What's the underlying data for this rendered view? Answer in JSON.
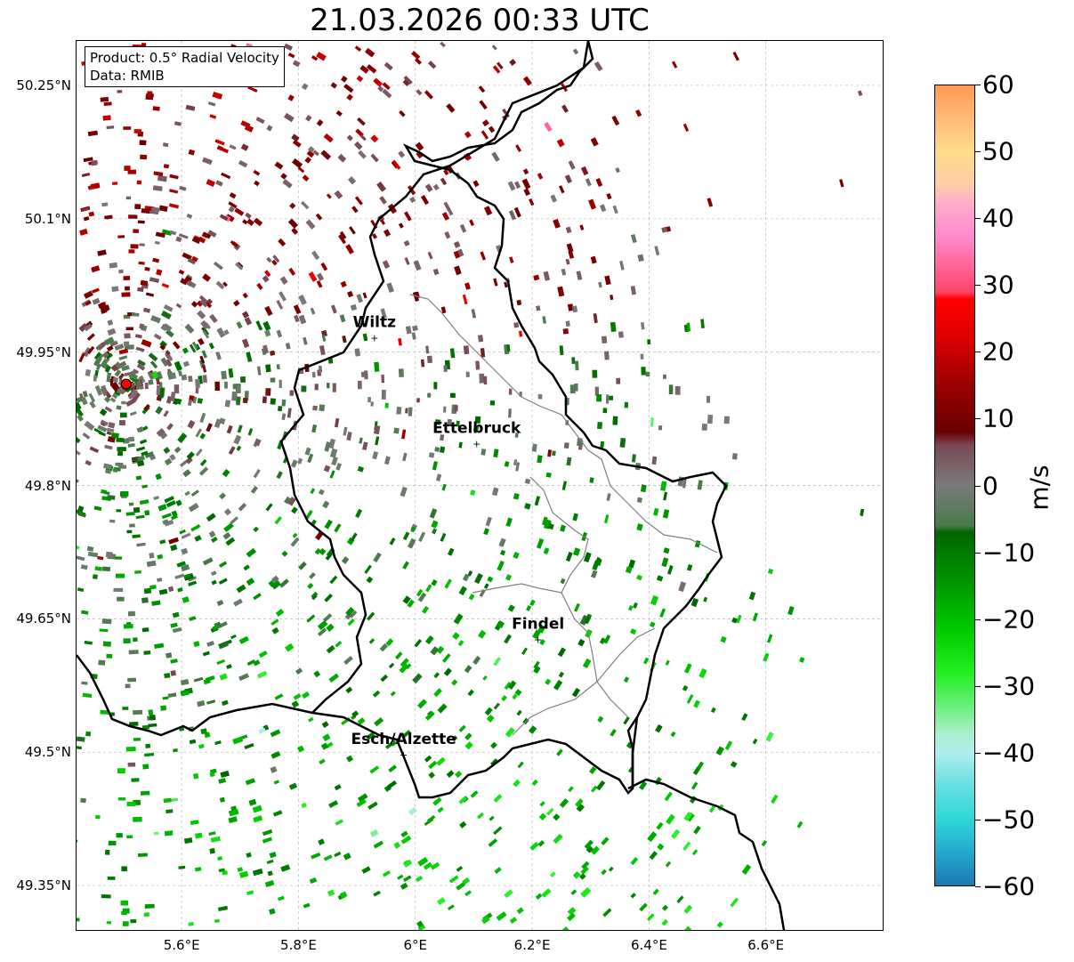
{
  "title": "21.03.2026 00:33 UTC",
  "info": {
    "product": "Product: 0.5° Radial Velocity",
    "data": "Data: RMIB"
  },
  "map": {
    "lon_range": [
      5.42,
      6.8
    ],
    "lat_range": [
      49.3,
      50.3
    ],
    "lat_ticks": [
      {
        "value": 50.25,
        "label": "50.25°N"
      },
      {
        "value": 50.1,
        "label": "50.1°N"
      },
      {
        "value": 49.95,
        "label": "49.95°N"
      },
      {
        "value": 49.8,
        "label": "49.8°N"
      },
      {
        "value": 49.65,
        "label": "49.65°N"
      },
      {
        "value": 49.5,
        "label": "49.5°N"
      },
      {
        "value": 49.35,
        "label": "49.35°N"
      }
    ],
    "lon_ticks": [
      {
        "value": 5.6,
        "label": "5.6°E"
      },
      {
        "value": 5.8,
        "label": "5.8°E"
      },
      {
        "value": 6.0,
        "label": "6°E"
      },
      {
        "value": 6.2,
        "label": "6.2°E"
      },
      {
        "value": 6.4,
        "label": "6.4°E"
      },
      {
        "value": 6.6,
        "label": "6.6°E"
      }
    ],
    "radar_site": {
      "lon": 5.505,
      "lat": 49.914,
      "color": "#ff0000"
    },
    "cities": [
      {
        "name": "Wiltz",
        "lon": 5.93,
        "lat": 49.966
      },
      {
        "name": "Ettelbruck",
        "lon": 6.105,
        "lat": 49.847
      },
      {
        "name": "Findel",
        "lon": 6.21,
        "lat": 49.627
      },
      {
        "name": "Esch/Alzette",
        "lon": 5.98,
        "lat": 49.497
      }
    ]
  },
  "colorbar": {
    "unit": "m/s",
    "min": -60,
    "max": 60,
    "ticks": [
      {
        "value": 60,
        "label": "60"
      },
      {
        "value": 50,
        "label": "50"
      },
      {
        "value": 40,
        "label": "40"
      },
      {
        "value": 30,
        "label": "30"
      },
      {
        "value": 20,
        "label": "20"
      },
      {
        "value": 10,
        "label": "10"
      },
      {
        "value": 0,
        "label": "0"
      },
      {
        "value": -10,
        "label": "−10"
      },
      {
        "value": -20,
        "label": "−20"
      },
      {
        "value": -30,
        "label": "−30"
      },
      {
        "value": -40,
        "label": "−40"
      },
      {
        "value": -50,
        "label": "−50"
      },
      {
        "value": -60,
        "label": "−60"
      }
    ],
    "stops": [
      {
        "value": -60,
        "color": "#1f77b4"
      },
      {
        "value": -55,
        "color": "#22aacc"
      },
      {
        "value": -50,
        "color": "#2ed8d8"
      },
      {
        "value": -45,
        "color": "#66e0e0"
      },
      {
        "value": -40,
        "color": "#b0eef0"
      },
      {
        "value": -37,
        "color": "#a8f0c8"
      },
      {
        "value": -33,
        "color": "#66f07a"
      },
      {
        "value": -28,
        "color": "#22ee22"
      },
      {
        "value": -22,
        "color": "#00cc00"
      },
      {
        "value": -15,
        "color": "#009900"
      },
      {
        "value": -7,
        "color": "#006600"
      },
      {
        "value": -6,
        "color": "#4a7a4a"
      },
      {
        "value": 0,
        "color": "#7a7a7a"
      },
      {
        "value": 6,
        "color": "#7a4a55"
      },
      {
        "value": 8,
        "color": "#6a0000"
      },
      {
        "value": 15,
        "color": "#990000"
      },
      {
        "value": 22,
        "color": "#dd0000"
      },
      {
        "value": 28,
        "color": "#ff0000"
      },
      {
        "value": 29,
        "color": "#ff4466"
      },
      {
        "value": 37,
        "color": "#ff88cc"
      },
      {
        "value": 42,
        "color": "#ffaacc"
      },
      {
        "value": 45,
        "color": "#ffcca8"
      },
      {
        "value": 50,
        "color": "#ffdd88"
      },
      {
        "value": 55,
        "color": "#ffbb77"
      },
      {
        "value": 60,
        "color": "#ff9955"
      }
    ]
  }
}
